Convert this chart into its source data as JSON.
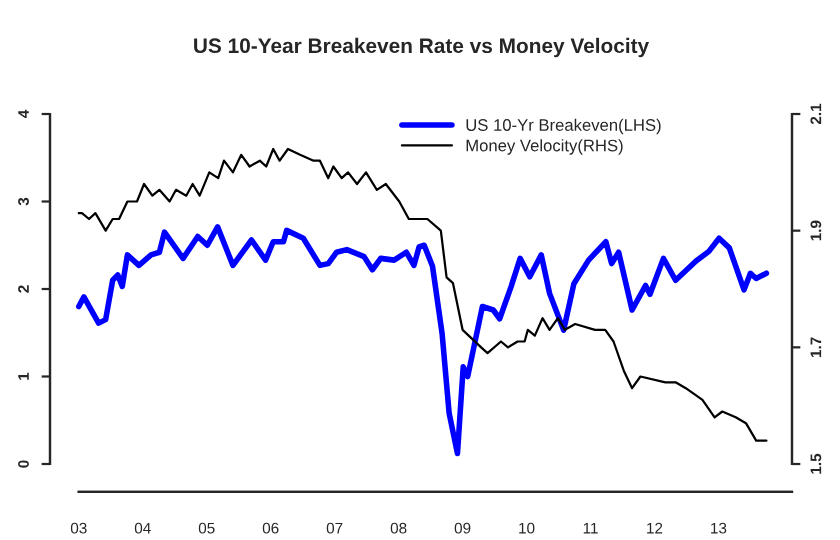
{
  "chart_data": {
    "type": "line",
    "title": "US 10-Year Breakeven Rate vs Money Velocity",
    "xlim": [
      2002.55,
      2014.15
    ],
    "xticks": [
      {
        "value": 2003,
        "label": "03"
      },
      {
        "value": 2004,
        "label": "04"
      },
      {
        "value": 2005,
        "label": "05"
      },
      {
        "value": 2006,
        "label": "06"
      },
      {
        "value": 2007,
        "label": "07"
      },
      {
        "value": 2008,
        "label": "08"
      },
      {
        "value": 2009,
        "label": "09"
      },
      {
        "value": 2010,
        "label": "10"
      },
      {
        "value": 2011,
        "label": "11"
      },
      {
        "value": 2012,
        "label": "12"
      },
      {
        "value": 2013,
        "label": "13"
      }
    ],
    "ylim": [
      0,
      4
    ],
    "yticks": [
      0,
      1,
      2,
      3,
      4
    ],
    "y2lim": [
      1.5,
      2.1
    ],
    "y2ticks": [
      1.5,
      1.7,
      1.9,
      2.1
    ],
    "legend": "top right",
    "grid": false,
    "series": [
      {
        "name": "US 10-Yr Breakeven(LHS)",
        "color": "#0000ff",
        "x": [
          2003.0,
          2003.08,
          2003.31,
          2003.42,
          2003.53,
          2003.61,
          2003.68,
          2003.76,
          2003.94,
          2004.13,
          2004.26,
          2004.34,
          2004.63,
          2004.86,
          2005.01,
          2005.17,
          2005.41,
          2005.7,
          2005.92,
          2006.04,
          2006.2,
          2006.25,
          2006.51,
          2006.77,
          2006.9,
          2007.03,
          2007.19,
          2007.46,
          2007.59,
          2007.72,
          2007.93,
          2008.12,
          2008.24,
          2008.32,
          2008.4,
          2008.53,
          2008.68,
          2008.79,
          2008.92,
          2009.01,
          2009.08,
          2009.31,
          2009.48,
          2009.58,
          2009.76,
          2009.9,
          2010.05,
          2010.23,
          2010.36,
          2010.58,
          2010.74,
          2010.97,
          2011.24,
          2011.33,
          2011.44,
          2011.65,
          2011.86,
          2011.93,
          2012.14,
          2012.33,
          2012.65,
          2012.85,
          2013.01,
          2013.17,
          2013.4,
          2013.5,
          2013.59,
          2013.75
        ],
        "values": [
          1.8,
          1.91,
          1.61,
          1.65,
          2.1,
          2.16,
          2.03,
          2.39,
          2.27,
          2.39,
          2.42,
          2.65,
          2.35,
          2.6,
          2.5,
          2.71,
          2.27,
          2.56,
          2.33,
          2.54,
          2.54,
          2.67,
          2.58,
          2.27,
          2.29,
          2.42,
          2.45,
          2.37,
          2.22,
          2.35,
          2.33,
          2.42,
          2.27,
          2.48,
          2.5,
          2.26,
          1.49,
          0.58,
          0.12,
          1.11,
          1.0,
          1.8,
          1.76,
          1.66,
          2.03,
          2.35,
          2.14,
          2.39,
          1.95,
          1.53,
          2.06,
          2.33,
          2.54,
          2.29,
          2.42,
          1.76,
          2.04,
          1.94,
          2.35,
          2.1,
          2.32,
          2.43,
          2.58,
          2.47,
          1.99,
          2.18,
          2.12,
          2.18
        ]
      },
      {
        "name": "Money Velocity(RHS)",
        "color": "#000000",
        "axis": "y2",
        "x": [
          2003.0,
          2003.05,
          2003.16,
          2003.26,
          2003.42,
          2003.53,
          2003.63,
          2003.76,
          2003.91,
          2004.02,
          2004.15,
          2004.26,
          2004.42,
          2004.52,
          2004.68,
          2004.78,
          2004.89,
          2005.04,
          2005.18,
          2005.27,
          2005.41,
          2005.54,
          2005.67,
          2005.83,
          2005.93,
          2006.04,
          2006.14,
          2006.27,
          2006.46,
          2006.67,
          2006.77,
          2006.9,
          2006.98,
          2007.11,
          2007.21,
          2007.35,
          2007.49,
          2007.66,
          2007.8,
          2008.01,
          2008.16,
          2008.26,
          2008.45,
          2008.66,
          2008.75,
          2008.85,
          2009.0,
          2009.29,
          2009.39,
          2009.6,
          2009.71,
          2009.86,
          2009.97,
          2010.02,
          2010.13,
          2010.25,
          2010.36,
          2010.49,
          2010.6,
          2010.76,
          2011.07,
          2011.23,
          2011.36,
          2011.52,
          2011.65,
          2011.78,
          2012.17,
          2012.33,
          2012.49,
          2012.75,
          2012.94,
          2013.06,
          2013.27,
          2013.43,
          2013.59,
          2013.75
        ],
        "values": [
          1.93,
          1.93,
          1.92,
          1.93,
          1.9,
          1.92,
          1.92,
          1.95,
          1.95,
          1.98,
          1.96,
          1.97,
          1.95,
          1.97,
          1.96,
          1.98,
          1.96,
          2.0,
          1.99,
          2.02,
          2.0,
          2.03,
          2.01,
          2.02,
          2.01,
          2.04,
          2.02,
          2.04,
          2.03,
          2.02,
          2.02,
          1.99,
          2.01,
          1.99,
          2.0,
          1.98,
          2.0,
          1.97,
          1.98,
          1.95,
          1.92,
          1.92,
          1.92,
          1.9,
          1.82,
          1.81,
          1.73,
          1.7,
          1.69,
          1.71,
          1.7,
          1.71,
          1.71,
          1.73,
          1.72,
          1.75,
          1.73,
          1.75,
          1.73,
          1.74,
          1.73,
          1.73,
          1.71,
          1.66,
          1.63,
          1.65,
          1.64,
          1.64,
          1.63,
          1.61,
          1.58,
          1.59,
          1.58,
          1.57,
          1.54,
          1.54
        ]
      }
    ]
  }
}
